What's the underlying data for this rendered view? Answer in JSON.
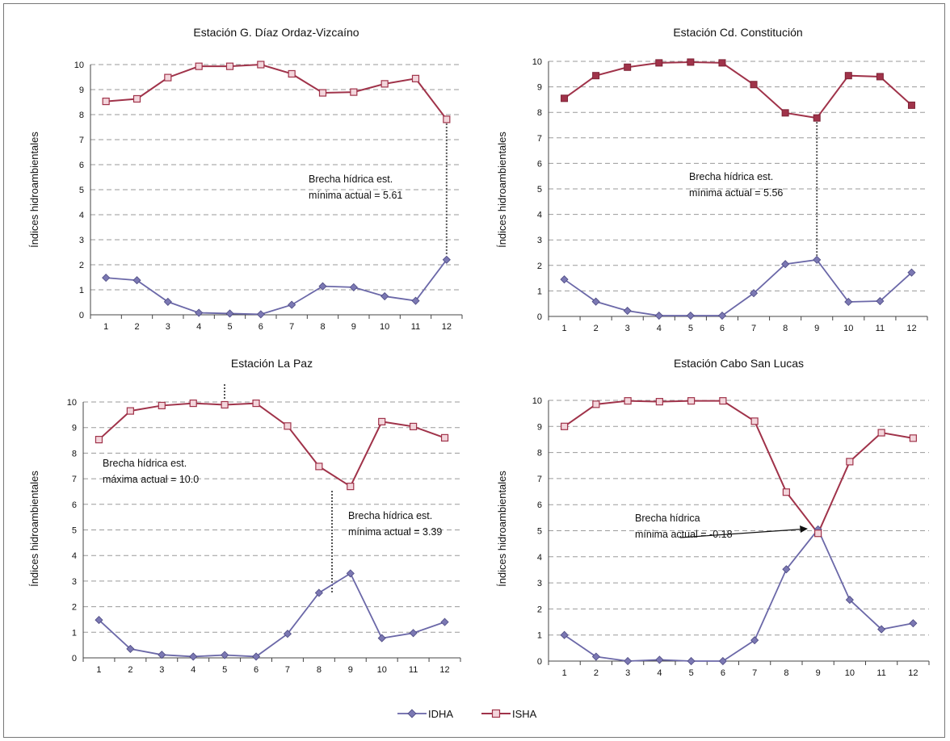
{
  "chart_data": [
    {
      "type": "line",
      "title": "Estación G. Díaz Ordaz-Vizcaíno",
      "xlabel": "",
      "ylabel": "Índices hidroambientales",
      "x": [
        1,
        2,
        3,
        4,
        5,
        6,
        7,
        8,
        9,
        10,
        11,
        12
      ],
      "ylim": [
        0,
        10
      ],
      "yticks": [
        0,
        1,
        2,
        3,
        4,
        5,
        6,
        7,
        8,
        9,
        10
      ],
      "series": [
        {
          "name": "IDHA",
          "values": [
            1.48,
            1.38,
            0.52,
            0.08,
            0.05,
            0.02,
            0.4,
            1.14,
            1.1,
            0.74,
            0.56,
            2.2
          ]
        },
        {
          "name": "ISHA",
          "values": [
            8.53,
            8.63,
            9.48,
            9.93,
            9.93,
            10.0,
            9.63,
            8.87,
            8.9,
            9.23,
            9.44,
            7.81
          ]
        }
      ],
      "annotations": [
        {
          "lines": [
            "Brecha hídrica est.",
            "mínima actual = 5.61"
          ],
          "x": 12
        }
      ]
    },
    {
      "type": "line",
      "title": "Estación Cd. Constitución",
      "xlabel": "",
      "ylabel": "Índices hidroambientales",
      "x": [
        1,
        2,
        3,
        4,
        5,
        6,
        7,
        8,
        9,
        10,
        11,
        12
      ],
      "ylim": [
        0,
        10
      ],
      "yticks": [
        0,
        1,
        2,
        3,
        4,
        5,
        6,
        7,
        8,
        9,
        10
      ],
      "series": [
        {
          "name": "IDHA",
          "values": [
            1.45,
            0.58,
            0.22,
            0.03,
            0.03,
            0.03,
            0.91,
            2.05,
            2.22,
            0.57,
            0.6,
            1.72
          ]
        },
        {
          "name": "ISHA",
          "values": [
            8.55,
            9.44,
            9.77,
            9.94,
            9.97,
            9.94,
            9.09,
            7.98,
            7.78,
            9.44,
            9.4,
            8.28
          ]
        }
      ],
      "annotations": [
        {
          "lines": [
            "Brecha hídrica est.",
            "mínima actual = 5.56"
          ],
          "x": 9
        }
      ]
    },
    {
      "type": "line",
      "title": "Estación La Paz",
      "xlabel": "",
      "ylabel": "Índices hidroambientales",
      "x": [
        1,
        2,
        3,
        4,
        5,
        6,
        7,
        8,
        9,
        10,
        11,
        12
      ],
      "ylim": [
        0,
        10
      ],
      "yticks": [
        0,
        1,
        2,
        3,
        4,
        5,
        6,
        7,
        8,
        9,
        10
      ],
      "series": [
        {
          "name": "IDHA",
          "values": [
            1.48,
            0.35,
            0.12,
            0.05,
            0.11,
            0.05,
            0.94,
            2.54,
            3.3,
            0.77,
            0.97,
            1.4
          ]
        },
        {
          "name": "ISHA",
          "values": [
            8.53,
            9.65,
            9.86,
            9.95,
            9.89,
            9.95,
            9.06,
            7.48,
            6.7,
            9.23,
            9.04,
            8.6
          ]
        }
      ],
      "annotations": [
        {
          "lines": [
            "Brecha hídrica est.",
            "máxima actual = 10.0"
          ],
          "x": 5
        },
        {
          "lines": [
            "Brecha hídrica est.",
            "mínima actual = 3.39"
          ],
          "x": 9
        }
      ]
    },
    {
      "type": "line",
      "title": "Estación Cabo San Lucas",
      "xlabel": "",
      "ylabel": "Índices hidroambientales",
      "x": [
        1,
        2,
        3,
        4,
        5,
        6,
        7,
        8,
        9,
        10,
        11,
        12
      ],
      "ylim": [
        0,
        10
      ],
      "yticks": [
        0,
        1,
        2,
        3,
        4,
        5,
        6,
        7,
        8,
        9,
        10
      ],
      "series": [
        {
          "name": "IDHA",
          "values": [
            1.0,
            0.17,
            0.0,
            0.05,
            0.0,
            0.0,
            0.8,
            3.52,
            5.05,
            2.35,
            1.22,
            1.45
          ]
        },
        {
          "name": "ISHA",
          "values": [
            9.0,
            9.85,
            9.98,
            9.95,
            9.98,
            9.98,
            9.2,
            6.48,
            4.9,
            7.65,
            8.76,
            8.55
          ]
        }
      ],
      "annotations": [
        {
          "lines": [
            "Brecha hídrica",
            "mínima actual = -0.18"
          ],
          "x": 9
        }
      ]
    }
  ],
  "legend": {
    "position": "bottom-center",
    "items": [
      {
        "label": "IDHA",
        "color": "#7b78b3",
        "marker": "diamond"
      },
      {
        "label": "ISHA",
        "color": "#a0334a",
        "marker": "square-open"
      }
    ]
  }
}
